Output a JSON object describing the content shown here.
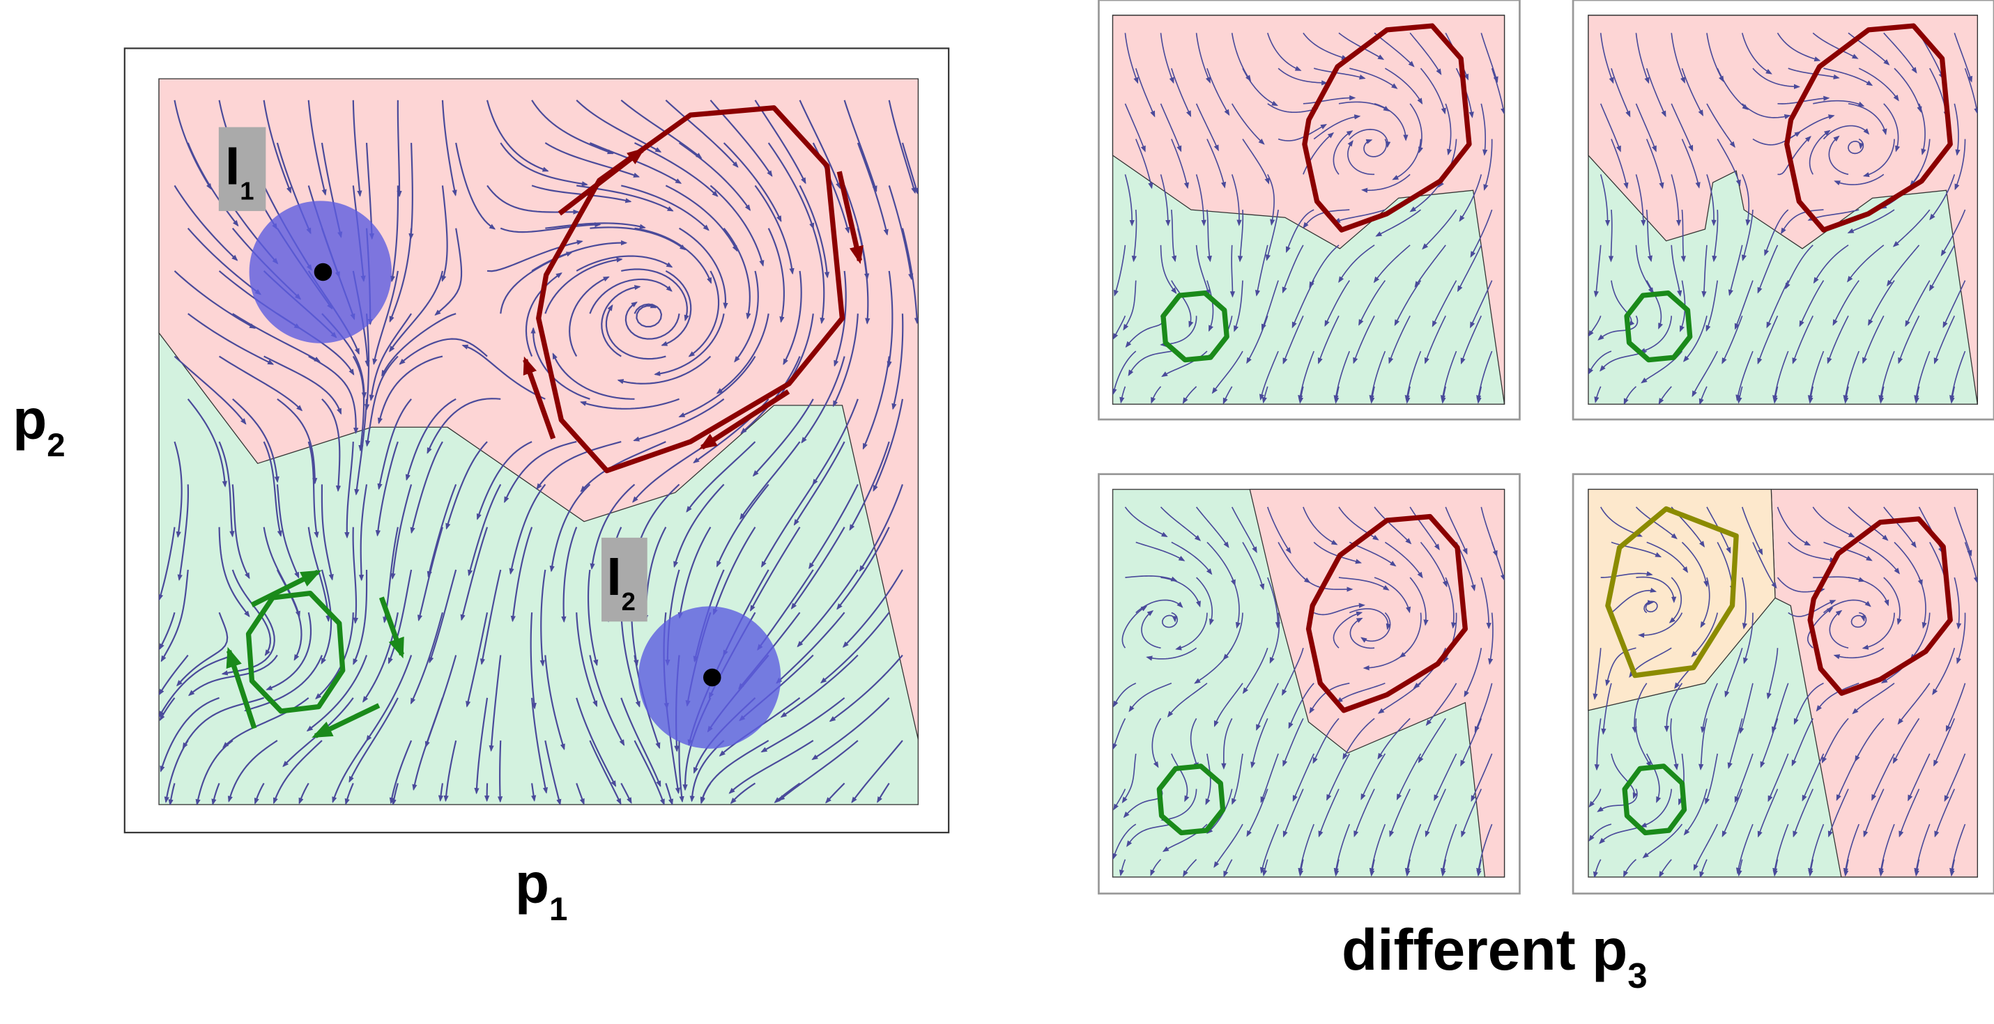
{
  "main": {
    "x_label": {
      "base": "p",
      "sub": "1"
    },
    "y_label": {
      "base": "p",
      "sub": "2"
    },
    "regions": [
      {
        "label": {
          "base": "I",
          "sub": "1"
        }
      },
      {
        "label": {
          "base": "I",
          "sub": "2"
        }
      }
    ]
  },
  "panels": {
    "caption": {
      "base": "different p",
      "sub": "3"
    }
  }
}
